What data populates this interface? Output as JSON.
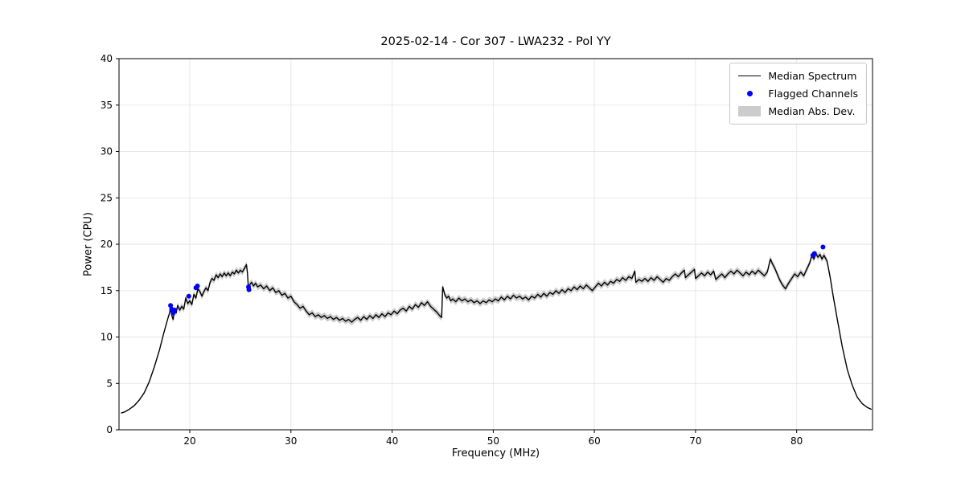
{
  "figure": {
    "title": "2025-02-14 - Cor 307 - LWA232 - Pol YY",
    "xlabel": "Frequency (MHz)",
    "ylabel": "Power (CPU)"
  },
  "legend": {
    "entries": [
      {
        "label": "Median Spectrum",
        "type": "line",
        "color": "#000000"
      },
      {
        "label": "Flagged Channels",
        "type": "marker",
        "color": "#0000ff"
      },
      {
        "label": "Median Abs. Dev.",
        "type": "patch",
        "color": "#cccccc"
      }
    ]
  },
  "chart_data": {
    "type": "line",
    "title": "2025-02-14 - Cor 307 - LWA232 - Pol YY",
    "xlabel": "Frequency (MHz)",
    "ylabel": "Power (CPU)",
    "xlim": [
      13.0,
      87.5
    ],
    "ylim": [
      0,
      40
    ],
    "xticks": [
      20,
      30,
      40,
      50,
      60,
      70,
      80
    ],
    "yticks": [
      0,
      5,
      10,
      15,
      20,
      25,
      30,
      35,
      40
    ],
    "grid": true,
    "grid_color": "#e6e6e6",
    "legend_position": "upper right",
    "series": [
      {
        "name": "Median Spectrum",
        "type": "line",
        "color": "#000000",
        "x": [
          13.2,
          13.5,
          14.0,
          14.5,
          15.0,
          15.5,
          16.0,
          16.5,
          17.0,
          17.4,
          17.8,
          18.0,
          18.1,
          18.2,
          18.35,
          18.5,
          18.65,
          18.8,
          19.0,
          19.2,
          19.4,
          19.6,
          19.8,
          20.0,
          20.2,
          20.4,
          20.6,
          20.8,
          21.0,
          21.2,
          21.4,
          21.6,
          21.8,
          22.0,
          22.2,
          22.4,
          22.6,
          22.8,
          23.0,
          23.2,
          23.4,
          23.6,
          23.8,
          24.0,
          24.2,
          24.4,
          24.6,
          24.8,
          25.0,
          25.2,
          25.4,
          25.6,
          25.7,
          25.8,
          25.9,
          26.1,
          26.3,
          26.5,
          26.7,
          27.0,
          27.3,
          27.6,
          27.9,
          28.2,
          28.5,
          28.8,
          29.1,
          29.4,
          29.7,
          30.0,
          30.3,
          30.6,
          30.9,
          31.2,
          31.5,
          31.8,
          32.1,
          32.4,
          32.7,
          33.0,
          33.3,
          33.6,
          33.9,
          34.2,
          34.5,
          34.8,
          35.1,
          35.4,
          35.7,
          36.0,
          36.3,
          36.6,
          36.9,
          37.2,
          37.5,
          37.8,
          38.1,
          38.4,
          38.7,
          39.0,
          39.3,
          39.6,
          39.9,
          40.2,
          40.5,
          40.8,
          41.1,
          41.4,
          41.7,
          42.0,
          42.3,
          42.6,
          42.9,
          43.2,
          43.5,
          43.8,
          44.1,
          44.4,
          44.7,
          44.9,
          45.0,
          45.2,
          45.4,
          45.6,
          45.8,
          46.0,
          46.3,
          46.6,
          46.9,
          47.2,
          47.5,
          47.8,
          48.1,
          48.4,
          48.7,
          49.0,
          49.3,
          49.6,
          49.9,
          50.2,
          50.5,
          50.8,
          51.1,
          51.4,
          51.7,
          52.0,
          52.3,
          52.6,
          52.9,
          53.2,
          53.5,
          53.8,
          54.1,
          54.4,
          54.7,
          55.0,
          55.3,
          55.6,
          55.9,
          56.2,
          56.5,
          56.8,
          57.1,
          57.4,
          57.7,
          58.0,
          58.3,
          58.6,
          58.9,
          59.2,
          59.5,
          59.8,
          60.1,
          60.4,
          60.7,
          61.0,
          61.3,
          61.6,
          61.9,
          62.2,
          62.5,
          62.8,
          63.1,
          63.4,
          63.7,
          64.0,
          64.1,
          64.4,
          64.7,
          65.0,
          65.3,
          65.6,
          65.9,
          66.2,
          66.5,
          66.8,
          67.1,
          67.4,
          67.7,
          68.0,
          68.3,
          68.6,
          68.9,
          69.0,
          69.3,
          69.6,
          69.9,
          70.0,
          70.3,
          70.6,
          70.9,
          71.2,
          71.5,
          71.8,
          72.0,
          72.3,
          72.6,
          72.9,
          73.2,
          73.5,
          73.8,
          74.1,
          74.4,
          74.7,
          75.0,
          75.3,
          75.6,
          75.9,
          76.2,
          76.5,
          76.8,
          77.1,
          77.4,
          77.6,
          77.8,
          78.0,
          78.3,
          78.6,
          78.9,
          79.2,
          79.5,
          79.8,
          80.1,
          80.4,
          80.7,
          81.0,
          81.3,
          81.5,
          81.7,
          81.9,
          82.1,
          82.3,
          82.5,
          82.7,
          83.0,
          83.3,
          83.6,
          84.0,
          84.5,
          85.0,
          85.5,
          86.0,
          86.5,
          87.0,
          87.4
        ],
        "y": [
          1.8,
          1.9,
          2.2,
          2.6,
          3.2,
          4.0,
          5.2,
          6.8,
          8.6,
          10.3,
          11.9,
          12.6,
          13.2,
          12.4,
          11.9,
          12.9,
          12.6,
          13.4,
          12.9,
          13.3,
          13.0,
          14.2,
          13.6,
          13.9,
          13.5,
          14.6,
          14.2,
          15.2,
          14.9,
          14.4,
          14.9,
          15.3,
          15.0,
          15.9,
          16.3,
          16.1,
          16.7,
          16.4,
          16.8,
          16.5,
          16.9,
          16.6,
          16.9,
          16.6,
          17.0,
          16.8,
          17.2,
          16.9,
          17.2,
          17.0,
          17.4,
          17.8,
          16.9,
          15.1,
          15.6,
          15.9,
          15.5,
          15.8,
          15.4,
          15.6,
          15.2,
          15.5,
          15.0,
          15.3,
          14.8,
          15.0,
          14.5,
          14.7,
          14.2,
          14.4,
          13.8,
          13.5,
          13.1,
          13.3,
          12.8,
          12.4,
          12.6,
          12.2,
          12.4,
          12.1,
          12.3,
          12.0,
          12.2,
          11.9,
          12.1,
          11.8,
          12.0,
          11.7,
          11.9,
          11.6,
          11.9,
          12.1,
          11.8,
          12.2,
          11.9,
          12.3,
          12.0,
          12.4,
          12.1,
          12.5,
          12.2,
          12.6,
          12.4,
          12.8,
          12.5,
          12.9,
          13.1,
          12.8,
          13.3,
          13.0,
          13.5,
          13.2,
          13.7,
          13.4,
          13.8,
          13.3,
          13.0,
          12.7,
          12.3,
          12.1,
          15.4,
          14.6,
          14.2,
          14.4,
          13.9,
          14.1,
          13.8,
          14.2,
          13.9,
          14.1,
          13.8,
          14.0,
          13.7,
          13.9,
          13.6,
          13.9,
          13.7,
          14.0,
          13.8,
          14.1,
          13.9,
          14.3,
          14.0,
          14.4,
          14.1,
          14.5,
          14.2,
          14.4,
          14.1,
          14.3,
          14.0,
          14.4,
          14.2,
          14.6,
          14.3,
          14.7,
          14.4,
          14.8,
          14.6,
          15.0,
          14.7,
          15.1,
          14.8,
          15.2,
          15.0,
          15.4,
          15.1,
          15.5,
          15.2,
          15.6,
          15.3,
          15.0,
          15.4,
          15.8,
          15.5,
          15.9,
          15.6,
          16.0,
          15.8,
          16.2,
          16.0,
          16.4,
          16.1,
          16.5,
          16.3,
          17.1,
          15.9,
          16.2,
          16.0,
          16.3,
          16.0,
          16.4,
          16.1,
          16.5,
          16.2,
          15.9,
          16.3,
          16.1,
          16.5,
          16.8,
          16.5,
          16.9,
          17.2,
          16.4,
          16.7,
          17.0,
          17.3,
          16.3,
          16.6,
          16.9,
          16.6,
          17.0,
          16.7,
          17.1,
          16.2,
          16.5,
          16.8,
          16.4,
          16.8,
          17.1,
          16.8,
          17.2,
          16.9,
          16.6,
          17.0,
          16.7,
          17.1,
          16.8,
          17.2,
          16.9,
          16.6,
          17.0,
          18.4,
          17.9,
          17.5,
          17.0,
          16.2,
          15.6,
          15.2,
          15.8,
          16.3,
          16.8,
          16.5,
          17.0,
          16.6,
          17.3,
          18.0,
          18.8,
          18.4,
          19.0,
          18.6,
          18.9,
          18.4,
          18.8,
          18.2,
          16.5,
          14.5,
          12.0,
          9.0,
          6.5,
          4.8,
          3.5,
          2.8,
          2.4,
          2.2
        ]
      },
      {
        "name": "Flagged Channels",
        "type": "scatter",
        "color": "#0000ff",
        "x": [
          18.1,
          18.2,
          18.35,
          18.5,
          19.9,
          20.6,
          20.75,
          25.8,
          25.85,
          81.6,
          81.75,
          82.6
        ],
        "y": [
          13.4,
          13.0,
          12.6,
          12.9,
          14.4,
          15.3,
          15.5,
          15.4,
          15.1,
          18.8,
          19.0,
          19.7
        ]
      },
      {
        "name": "Median Abs. Dev.",
        "type": "band",
        "color": "#cccccc",
        "halfwidth": 0.35,
        "x_range": [
          17.9,
          83.3
        ]
      }
    ]
  }
}
